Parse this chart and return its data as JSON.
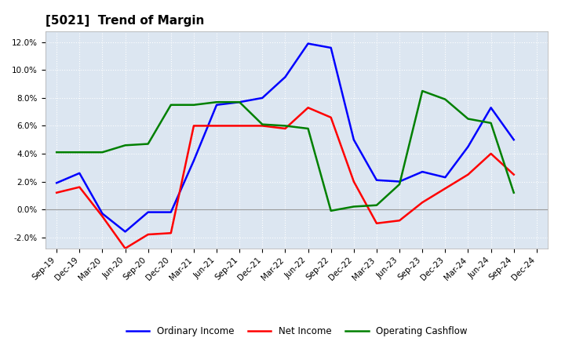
{
  "title": "[5021]  Trend of Margin",
  "x_labels": [
    "Sep-19",
    "Dec-19",
    "Mar-20",
    "Jun-20",
    "Sep-20",
    "Dec-20",
    "Mar-21",
    "Jun-21",
    "Sep-21",
    "Dec-21",
    "Mar-22",
    "Jun-22",
    "Sep-22",
    "Dec-22",
    "Mar-23",
    "Jun-23",
    "Sep-23",
    "Dec-23",
    "Mar-24",
    "Jun-24",
    "Sep-24",
    "Dec-24"
  ],
  "ordinary_income": [
    1.9,
    2.6,
    -0.3,
    -1.6,
    -0.2,
    -0.2,
    3.5,
    7.5,
    7.7,
    8.0,
    9.5,
    11.9,
    11.6,
    5.0,
    2.1,
    2.0,
    2.7,
    2.3,
    4.5,
    7.3,
    5.0,
    null
  ],
  "net_income": [
    1.2,
    1.6,
    -0.5,
    -2.8,
    -1.8,
    -1.7,
    6.0,
    6.0,
    6.0,
    6.0,
    5.8,
    7.3,
    6.6,
    2.0,
    -1.0,
    -0.8,
    0.5,
    1.5,
    2.5,
    4.0,
    2.5,
    null
  ],
  "operating_cashflow": [
    4.1,
    4.1,
    4.1,
    4.6,
    4.7,
    7.5,
    7.5,
    7.7,
    7.7,
    6.1,
    6.0,
    5.8,
    -0.1,
    0.2,
    0.3,
    1.8,
    8.5,
    7.9,
    6.5,
    6.2,
    1.2,
    null
  ],
  "ordinary_income_color": "#0000ff",
  "net_income_color": "#ff0000",
  "operating_cashflow_color": "#008000",
  "ylim_min": -0.028,
  "ylim_max": 0.128,
  "ytick_vals": [
    -2,
    0,
    2,
    4,
    6,
    8,
    10,
    12
  ],
  "ytick_labels": [
    "-2.0%",
    "0.0%",
    "2.0%",
    "4.0%",
    "6.0%",
    "8.0%",
    "10.0%",
    "12.0%"
  ],
  "background_color": "#ffffff",
  "plot_bg_color": "#dce6f1",
  "grid_color": "#ffffff",
  "line_width": 1.8,
  "legend_labels": [
    "Ordinary Income",
    "Net Income",
    "Operating Cashflow"
  ],
  "title_fontsize": 11,
  "tick_fontsize": 7.5,
  "legend_fontsize": 8.5
}
